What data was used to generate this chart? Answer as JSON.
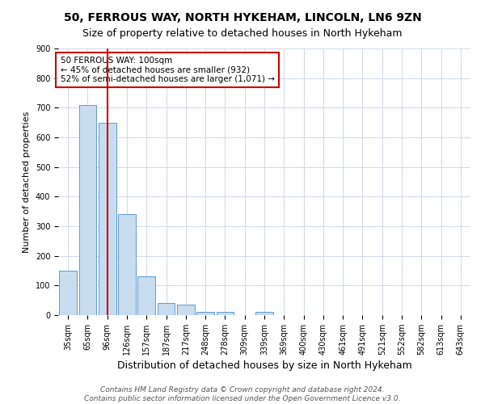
{
  "title1": "50, FERROUS WAY, NORTH HYKEHAM, LINCOLN, LN6 9ZN",
  "title2": "Size of property relative to detached houses in North Hykeham",
  "xlabel": "Distribution of detached houses by size in North Hykeham",
  "ylabel": "Number of detached properties",
  "footer1": "Contains HM Land Registry data © Crown copyright and database right 2024.",
  "footer2": "Contains public sector information licensed under the Open Government Licence v3.0.",
  "categories": [
    "35sqm",
    "65sqm",
    "96sqm",
    "126sqm",
    "157sqm",
    "187sqm",
    "217sqm",
    "248sqm",
    "278sqm",
    "309sqm",
    "339sqm",
    "369sqm",
    "400sqm",
    "430sqm",
    "461sqm",
    "491sqm",
    "521sqm",
    "552sqm",
    "582sqm",
    "613sqm",
    "643sqm"
  ],
  "values": [
    150,
    710,
    650,
    340,
    130,
    40,
    35,
    10,
    10,
    0,
    10,
    0,
    0,
    0,
    0,
    0,
    0,
    0,
    0,
    0,
    0
  ],
  "bar_color": "#c8dcf0",
  "bar_edge_color": "#5b9bd5",
  "vline_x_index": 2,
  "vline_color": "#cc0000",
  "ylim": [
    0,
    900
  ],
  "yticks": [
    0,
    100,
    200,
    300,
    400,
    500,
    600,
    700,
    800,
    900
  ],
  "annotation_line1": "50 FERROUS WAY: 100sqm",
  "annotation_line2": "← 45% of detached houses are smaller (932)",
  "annotation_line3": "52% of semi-detached houses are larger (1,071) →",
  "annotation_box_color": "#cc0000",
  "bg_color": "#ffffff",
  "grid_color": "#d0d8e8",
  "title1_fontsize": 10,
  "title2_fontsize": 9,
  "xlabel_fontsize": 9,
  "ylabel_fontsize": 8,
  "tick_fontsize": 7,
  "annotation_fontsize": 7.5,
  "footer_fontsize": 6.5
}
